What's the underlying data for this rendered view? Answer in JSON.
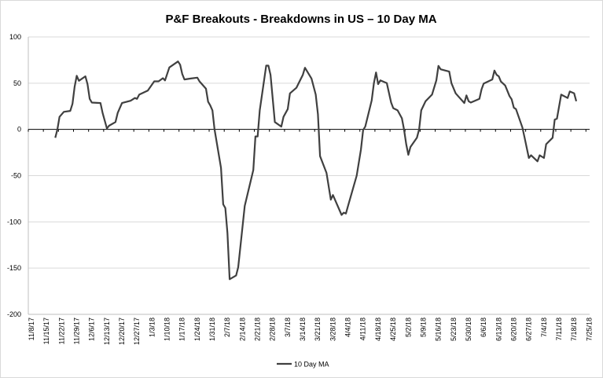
{
  "chart_data": {
    "type": "line",
    "title": "P&F Breakouts - Breakdowns in US – 10 Day MA",
    "xlabel": "",
    "ylabel": "",
    "ylim": [
      -200,
      100
    ],
    "yticks": [
      100,
      50,
      0,
      -50,
      -100,
      -150,
      -200
    ],
    "xlim": [
      "11/8/17",
      "7/25/18"
    ],
    "xtick_labels": [
      "11/8/17",
      "11/15/17",
      "11/22/17",
      "11/29/17",
      "12/6/17",
      "12/13/17",
      "12/20/17",
      "12/27/17",
      "1/3/18",
      "1/10/18",
      "1/17/18",
      "1/24/18",
      "1/31/18",
      "2/7/18",
      "2/14/18",
      "2/21/18",
      "2/28/18",
      "3/7/18",
      "3/14/18",
      "3/21/18",
      "3/28/18",
      "4/4/18",
      "4/11/18",
      "4/18/18",
      "4/25/18",
      "5/2/18",
      "5/9/18",
      "5/16/18",
      "5/23/18",
      "5/30/18",
      "6/6/18",
      "6/13/18",
      "6/20/18",
      "6/27/18",
      "7/4/18",
      "7/11/18",
      "7/18/18",
      "7/25/18"
    ],
    "grid": true,
    "legend_position": "bottom",
    "colors": {
      "line": "#404040",
      "grid": "#d9d9d9",
      "zero": "#000000"
    },
    "series": [
      {
        "name": "10 Day MA",
        "x": [
          "11/20/17",
          "11/21/17",
          "11/22/17",
          "11/24/17",
          "11/27/17",
          "11/28/17",
          "11/29/17",
          "11/30/17",
          "12/1/17",
          "12/4/17",
          "12/5/17",
          "12/6/17",
          "12/7/17",
          "12/11/17",
          "12/12/17",
          "12/14/17",
          "12/15/17",
          "12/18/17",
          "12/19/17",
          "12/21/17",
          "12/25/17",
          "12/27/17",
          "12/28/17",
          "12/29/17",
          "1/2/18",
          "1/5/18",
          "1/7/18",
          "1/9/18",
          "1/10/18",
          "1/12/18",
          "1/16/18",
          "1/17/18",
          "1/18/18",
          "1/19/18",
          "1/22/18",
          "1/25/18",
          "1/26/18",
          "1/29/18",
          "1/30/18",
          "1/31/18",
          "2/1/18",
          "2/2/18",
          "2/5/18",
          "2/6/18",
          "2/7/18",
          "2/8/18",
          "2/9/18",
          "2/12/18",
          "2/13/18",
          "2/16/18",
          "2/20/18",
          "2/21/18",
          "2/22/18",
          "2/23/18",
          "2/26/18",
          "2/27/18",
          "2/28/18",
          "3/2/18",
          "3/5/18",
          "3/6/18",
          "3/8/18",
          "3/9/18",
          "3/12/18",
          "3/15/18",
          "3/16/18",
          "3/19/18",
          "3/21/18",
          "3/22/18",
          "3/23/18",
          "3/26/18",
          "3/28/18",
          "3/29/18",
          "4/2/18",
          "4/3/18",
          "4/4/18",
          "4/5/18",
          "4/9/18",
          "4/11/18",
          "4/12/18",
          "4/13/18",
          "4/16/18",
          "4/17/18",
          "4/18/18",
          "4/19/18",
          "4/20/18",
          "4/23/18",
          "4/25/18",
          "4/26/18",
          "4/28/18",
          "4/30/18",
          "5/1/18",
          "5/2/18",
          "5/3/18",
          "5/4/18",
          "5/7/18",
          "5/8/18",
          "5/9/18",
          "5/11/18",
          "5/14/18",
          "5/16/18",
          "5/17/18",
          "5/18/18",
          "5/22/18",
          "5/23/18",
          "5/25/18",
          "5/29/18",
          "5/30/18",
          "5/31/18",
          "6/1/18",
          "6/5/18",
          "6/6/18",
          "6/7/18",
          "6/11/18",
          "6/12/18",
          "6/13/18",
          "6/14/18",
          "6/15/18",
          "6/17/18",
          "6/19/18",
          "6/20/18",
          "6/21/18",
          "6/22/18",
          "6/25/18",
          "6/26/18",
          "6/28/18",
          "6/29/18",
          "7/2/18",
          "7/3/18",
          "7/5/18",
          "7/6/18",
          "7/9/18",
          "7/10/18",
          "7/11/18",
          "7/13/18",
          "7/16/18",
          "7/17/18",
          "7/19/18",
          "7/20/18"
        ],
        "values": [
          -9,
          0,
          13.6,
          19,
          20,
          27.7,
          46,
          58,
          52.6,
          57.4,
          49,
          33,
          29,
          28.5,
          17.8,
          1,
          4,
          8,
          17.8,
          28.5,
          31,
          34,
          33,
          37.6,
          42,
          52,
          52,
          55.4,
          53,
          67,
          73.5,
          70,
          60,
          54,
          55,
          56,
          52,
          44,
          30,
          26,
          20.6,
          0,
          -41.6,
          -81,
          -85,
          -112,
          -162,
          -158,
          -149,
          -82.7,
          -44,
          -7.6,
          -7.6,
          20.6,
          69,
          69,
          59,
          8,
          3,
          13.6,
          22,
          39,
          45,
          59,
          66.7,
          55,
          37.6,
          16.4,
          -28.9,
          -47,
          -76,
          -71,
          -92.5,
          -90,
          -91,
          -82.7,
          -50,
          -21.8,
          -0.6,
          3,
          31.4,
          50,
          61.6,
          49,
          53,
          50,
          29,
          23,
          20.6,
          12,
          0,
          -16,
          -27.5,
          -19,
          -9,
          0,
          20.6,
          30.5,
          37.6,
          53,
          68.7,
          65,
          62.5,
          50,
          39,
          28.5,
          36.8,
          30.5,
          29,
          33,
          43.3,
          49.5,
          54,
          63.6,
          59,
          57.4,
          51.8,
          47.5,
          36,
          32.5,
          23.4,
          22,
          2,
          -9,
          -30.9,
          -28,
          -34.5,
          -28,
          -30.9,
          -16,
          -9,
          10.7,
          11.5,
          37.6,
          34,
          41,
          39,
          30.5
        ]
      }
    ]
  }
}
